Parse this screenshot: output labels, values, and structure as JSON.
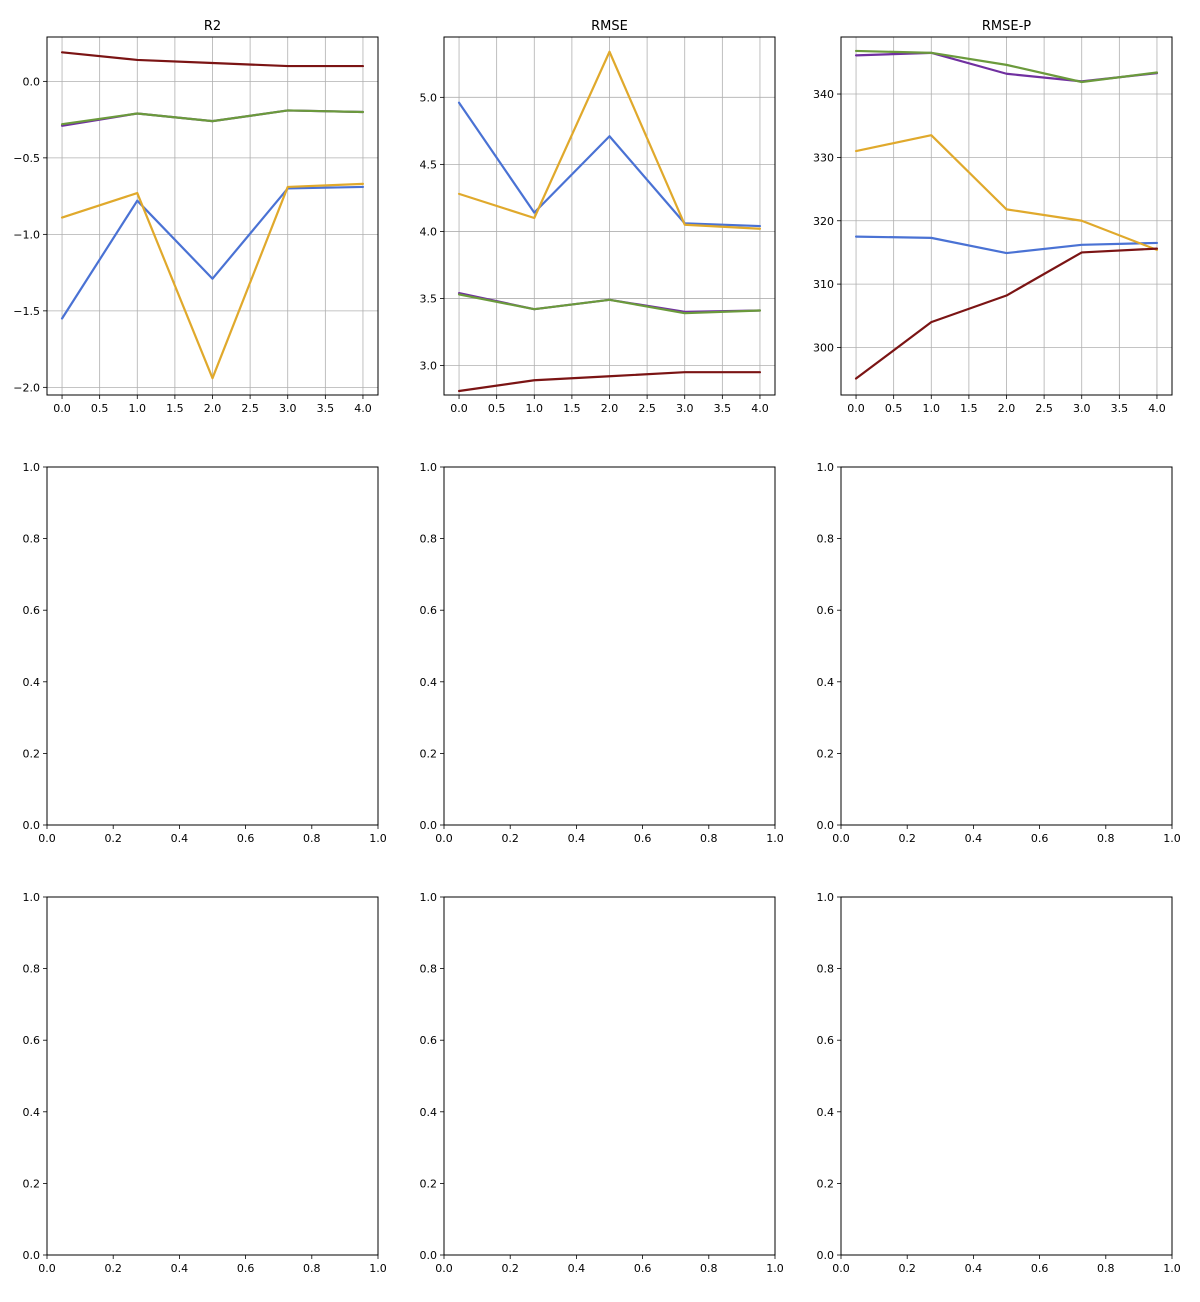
{
  "figure": {
    "background": "#ffffff"
  },
  "chart_data": [
    {
      "type": "line",
      "title": "R2",
      "xlabel": "",
      "ylabel": "",
      "grid": true,
      "xlim": [
        -0.2,
        4.2
      ],
      "ylim": [
        -2.05,
        0.29
      ],
      "xticks": [
        "0.0",
        "0.5",
        "1.0",
        "1.5",
        "2.0",
        "2.5",
        "3.0",
        "3.5",
        "4.0"
      ],
      "yticks": [
        "0.0",
        "−0.5",
        "−1.0",
        "−1.5",
        "−2.0"
      ],
      "x": [
        0,
        1,
        2,
        3,
        4
      ],
      "series": [
        {
          "color": "#4a72d4",
          "values": [
            -1.55,
            -0.78,
            -1.29,
            -0.7,
            -0.69
          ]
        },
        {
          "color": "#e0a92c",
          "values": [
            -0.89,
            -0.73,
            -1.94,
            -0.69,
            -0.67
          ]
        },
        {
          "color": "#7030a0",
          "values": [
            -0.29,
            -0.21,
            -0.26,
            -0.19,
            -0.2
          ]
        },
        {
          "color": "#6b9a3c",
          "values": [
            -0.28,
            -0.21,
            -0.26,
            -0.19,
            -0.2
          ]
        },
        {
          "color": "#7b1414",
          "values": [
            0.19,
            0.14,
            0.12,
            0.1,
            0.1
          ]
        }
      ]
    },
    {
      "type": "line",
      "title": "RMSE",
      "xlabel": "",
      "ylabel": "",
      "grid": true,
      "xlim": [
        -0.2,
        4.2
      ],
      "ylim": [
        2.78,
        5.45
      ],
      "xticks": [
        "0.0",
        "0.5",
        "1.0",
        "1.5",
        "2.0",
        "2.5",
        "3.0",
        "3.5",
        "4.0"
      ],
      "yticks": [
        "3.0",
        "3.5",
        "4.0",
        "4.5",
        "5.0"
      ],
      "x": [
        0,
        1,
        2,
        3,
        4
      ],
      "series": [
        {
          "color": "#4a72d4",
          "values": [
            4.96,
            4.14,
            4.71,
            4.06,
            4.04
          ]
        },
        {
          "color": "#e0a92c",
          "values": [
            4.28,
            4.1,
            5.34,
            4.05,
            4.02
          ]
        },
        {
          "color": "#7030a0",
          "values": [
            3.54,
            3.42,
            3.49,
            3.4,
            3.41
          ]
        },
        {
          "color": "#6b9a3c",
          "values": [
            3.53,
            3.42,
            3.49,
            3.39,
            3.41
          ]
        },
        {
          "color": "#7b1414",
          "values": [
            2.81,
            2.89,
            2.92,
            2.95,
            2.95
          ]
        }
      ]
    },
    {
      "type": "line",
      "title": "RMSE-P",
      "xlabel": "",
      "ylabel": "",
      "grid": true,
      "xlim": [
        -0.2,
        4.2
      ],
      "ylim": [
        292.5,
        349.0
      ],
      "xticks": [
        "0.0",
        "0.5",
        "1.0",
        "1.5",
        "2.0",
        "2.5",
        "3.0",
        "3.5",
        "4.0"
      ],
      "yticks": [
        "300",
        "310",
        "320",
        "330",
        "340"
      ],
      "x": [
        0,
        1,
        2,
        3,
        4
      ],
      "series": [
        {
          "color": "#4a72d4",
          "values": [
            317.5,
            317.3,
            314.9,
            316.2,
            316.5
          ]
        },
        {
          "color": "#e0a92c",
          "values": [
            331.0,
            333.5,
            321.8,
            320.0,
            315.4
          ]
        },
        {
          "color": "#7030a0",
          "values": [
            346.1,
            346.5,
            343.2,
            342.0,
            343.3
          ]
        },
        {
          "color": "#6b9a3c",
          "values": [
            346.8,
            346.5,
            344.6,
            341.9,
            343.4
          ]
        },
        {
          "color": "#7b1414",
          "values": [
            295.1,
            304.0,
            308.2,
            315.0,
            315.6
          ]
        }
      ]
    },
    {
      "type": "line",
      "title": "",
      "grid": false,
      "xlim": [
        0,
        1
      ],
      "ylim": [
        0,
        1
      ],
      "xticks": [
        "0.0",
        "0.2",
        "0.4",
        "0.6",
        "0.8",
        "1.0"
      ],
      "yticks": [
        "0.0",
        "0.2",
        "0.4",
        "0.6",
        "0.8",
        "1.0"
      ],
      "series": []
    },
    {
      "type": "line",
      "title": "",
      "grid": false,
      "xlim": [
        0,
        1
      ],
      "ylim": [
        0,
        1
      ],
      "xticks": [
        "0.0",
        "0.2",
        "0.4",
        "0.6",
        "0.8",
        "1.0"
      ],
      "yticks": [
        "0.0",
        "0.2",
        "0.4",
        "0.6",
        "0.8",
        "1.0"
      ],
      "series": []
    },
    {
      "type": "line",
      "title": "",
      "grid": false,
      "xlim": [
        0,
        1
      ],
      "ylim": [
        0,
        1
      ],
      "xticks": [
        "0.0",
        "0.2",
        "0.4",
        "0.6",
        "0.8",
        "1.0"
      ],
      "yticks": [
        "0.0",
        "0.2",
        "0.4",
        "0.6",
        "0.8",
        "1.0"
      ],
      "series": []
    },
    {
      "type": "line",
      "title": "",
      "grid": false,
      "xlim": [
        0,
        1
      ],
      "ylim": [
        0,
        1
      ],
      "xticks": [
        "0.0",
        "0.2",
        "0.4",
        "0.6",
        "0.8",
        "1.0"
      ],
      "yticks": [
        "0.0",
        "0.2",
        "0.4",
        "0.6",
        "0.8",
        "1.0"
      ],
      "series": []
    },
    {
      "type": "line",
      "title": "",
      "grid": false,
      "xlim": [
        0,
        1
      ],
      "ylim": [
        0,
        1
      ],
      "xticks": [
        "0.0",
        "0.2",
        "0.4",
        "0.6",
        "0.8",
        "1.0"
      ],
      "yticks": [
        "0.0",
        "0.2",
        "0.4",
        "0.6",
        "0.8",
        "1.0"
      ],
      "series": []
    },
    {
      "type": "line",
      "title": "",
      "grid": false,
      "xlim": [
        0,
        1
      ],
      "ylim": [
        0,
        1
      ],
      "xticks": [
        "0.0",
        "0.2",
        "0.4",
        "0.6",
        "0.8",
        "1.0"
      ],
      "yticks": [
        "0.0",
        "0.2",
        "0.4",
        "0.6",
        "0.8",
        "1.0"
      ],
      "series": []
    }
  ]
}
